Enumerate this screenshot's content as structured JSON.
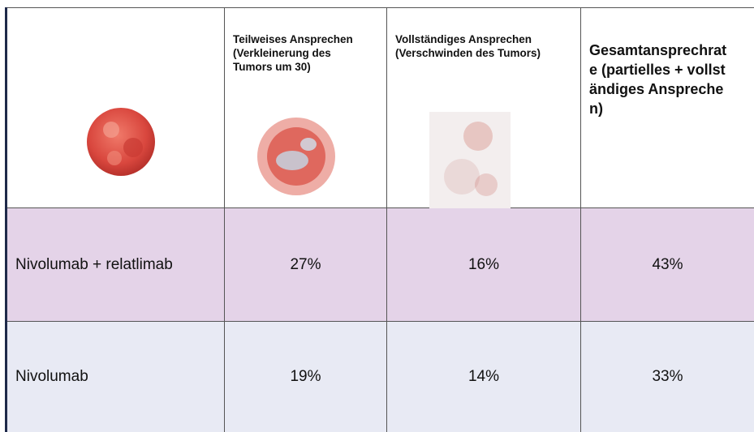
{
  "table": {
    "header": [
      "Teilweises Ansprechen (Verkleinerung des Tumors um 30)",
      "Vollständiges Ansprechen (Verschwinden des Tumors)",
      "Gesamtansprechrate (partielles + vollständiges Ansprechen)"
    ],
    "rows": [
      {
        "label": "Nivolumab + relatlimab",
        "cells": [
          "27%",
          "16%",
          "43%"
        ]
      },
      {
        "label": "Nivolumab",
        "cells": [
          "19%",
          "14%",
          "33%"
        ]
      }
    ]
  }
}
